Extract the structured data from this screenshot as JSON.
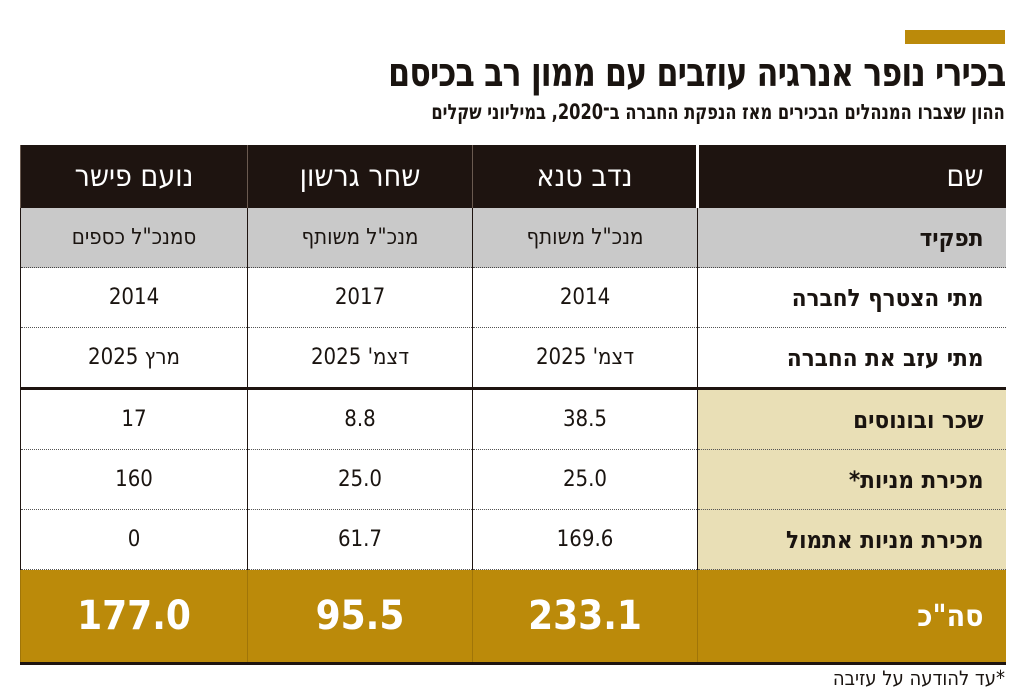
{
  "title": "בכירי נופר אנרגיה עוזבים עם ממון רב בכיסם",
  "subtitle": "ההון שצברו המנהלים הבכירים מאז הנפקת החברה ב־2020, במיליוני שקלים",
  "colors": {
    "header": "#1e1410",
    "role_row": "#c9c9c9",
    "money_label": "#e9dfb6",
    "total": "#bb8a0a"
  },
  "chart_data": {
    "type": "table",
    "header": {
      "label": "שם",
      "names": [
        "נדב טנא",
        "שחר גרשון",
        "נועם פישר"
      ]
    },
    "rows": [
      {
        "label": "תפקיד",
        "values": [
          "מנכ\"ל משותף",
          "מנכ\"ל משותף",
          "סמנכ\"ל כספים"
        ]
      },
      {
        "label": "מתי הצטרף לחברה",
        "values": [
          "2014",
          "2017",
          "2014"
        ]
      },
      {
        "label": "מתי עזב את החברה",
        "values": [
          "דצמ' 2025",
          "דצמ' 2025",
          "מרץ 2025"
        ]
      },
      {
        "label": "שכר ובונוסים",
        "values": [
          "38.5",
          "8.8",
          "17"
        ]
      },
      {
        "label": "מכירת מניות*",
        "values": [
          "25.0",
          "25.0",
          "160"
        ]
      },
      {
        "label": "מכירת מניות אתמול",
        "values": [
          "169.6",
          "61.7",
          "0"
        ]
      }
    ],
    "total": {
      "label": "סה\"כ",
      "values": [
        "233.1",
        "95.5",
        "177.0"
      ]
    }
  },
  "footnote": "*עד להודעה על עזיבה"
}
